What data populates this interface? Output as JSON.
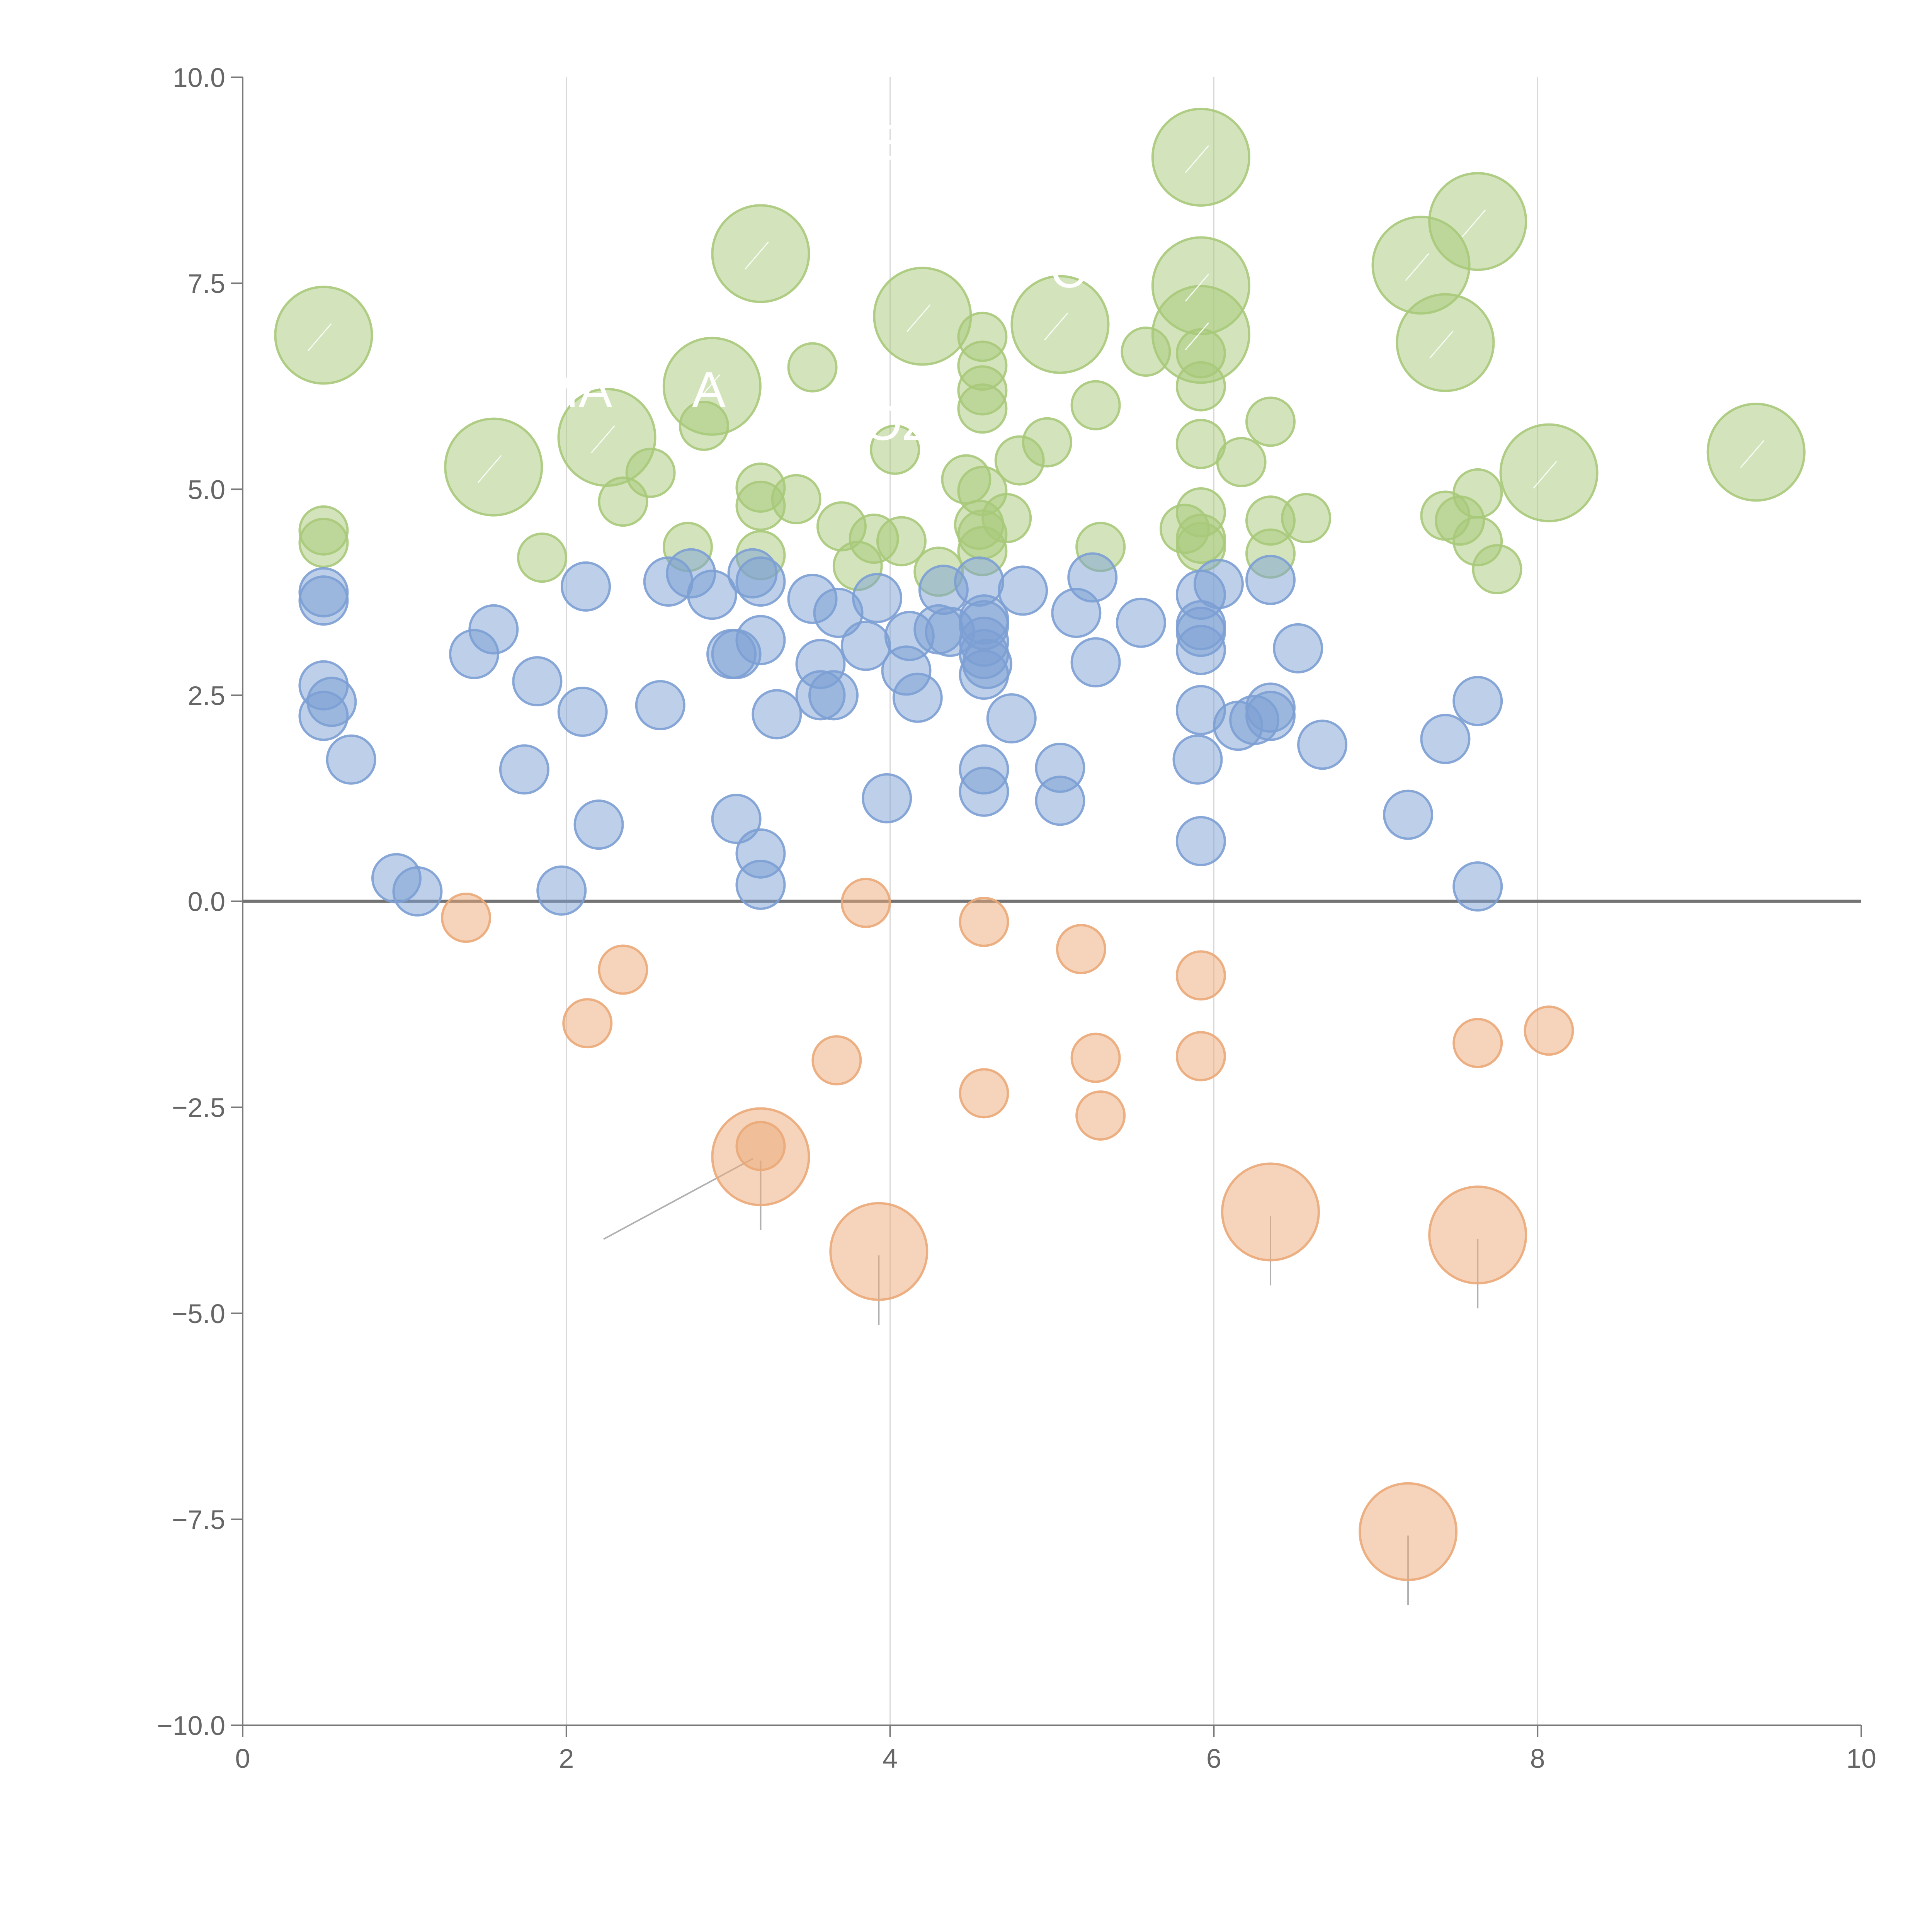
{
  "chart_data": {
    "type": "scatter",
    "title": "",
    "xlabel": "",
    "ylabel": "",
    "xlim": [
      0,
      10
    ],
    "ylim": [
      -10,
      10
    ],
    "xticks": [
      "0",
      "2",
      "4",
      "6",
      "8",
      "10"
    ],
    "yticks": [
      "10.0",
      "7.5",
      "5.0",
      "2.5",
      "0.0",
      "−2.5",
      "−5.0",
      "−7.5",
      "−10.0"
    ],
    "xtick_values": [
      0,
      2,
      4,
      6,
      8,
      10
    ],
    "ytick_values": [
      10,
      7.5,
      5,
      2.5,
      0,
      -2.5,
      -5,
      -7.5,
      -10
    ],
    "grid": "vertical",
    "zero_line": true,
    "colors": {
      "green": "#a8c97a",
      "blue": "#7c9fd4",
      "orange": "#eba978"
    },
    "series": [
      {
        "name": "green",
        "color": "#a8c97a",
        "points": [
          [
            0.5,
            6.87,
            "l"
          ],
          [
            3.2,
            7.86,
            "l"
          ],
          [
            4.2,
            7.1,
            "l"
          ],
          [
            5.05,
            7.0,
            "l"
          ],
          [
            5.92,
            9.03,
            "l"
          ],
          [
            5.92,
            7.47,
            "l"
          ],
          [
            5.92,
            6.88,
            "l"
          ],
          [
            7.28,
            7.72,
            "l"
          ],
          [
            7.63,
            8.25,
            "l"
          ],
          [
            7.43,
            6.78,
            "l"
          ],
          [
            9.35,
            5.45,
            "l"
          ],
          [
            8.07,
            5.2,
            "l"
          ],
          [
            2.9,
            6.25,
            "l"
          ],
          [
            2.25,
            5.63,
            "l"
          ],
          [
            1.55,
            5.27,
            "l"
          ],
          [
            0.5,
            4.5,
            "s"
          ],
          [
            0.5,
            4.35,
            "s"
          ],
          [
            1.85,
            4.17,
            "s"
          ],
          [
            2.35,
            4.85,
            "s"
          ],
          [
            2.52,
            5.2,
            "s"
          ],
          [
            2.85,
            5.77,
            "s"
          ],
          [
            2.75,
            4.3,
            "s"
          ],
          [
            3.2,
            5.02,
            "s"
          ],
          [
            3.2,
            4.8,
            "s"
          ],
          [
            3.2,
            4.2,
            "s"
          ],
          [
            3.42,
            4.88,
            "s"
          ],
          [
            3.52,
            6.48,
            "s"
          ],
          [
            3.7,
            4.55,
            "s"
          ],
          [
            3.8,
            4.07,
            "s"
          ],
          [
            3.9,
            4.4,
            "s"
          ],
          [
            4.07,
            4.37,
            "s"
          ],
          [
            4.03,
            5.48,
            "s"
          ],
          [
            4.3,
            4.0,
            "s"
          ],
          [
            4.47,
            5.12,
            "s"
          ],
          [
            4.57,
            6.85,
            "s"
          ],
          [
            4.57,
            6.5,
            "s"
          ],
          [
            4.57,
            6.2,
            "s"
          ],
          [
            4.57,
            5.98,
            "s"
          ],
          [
            4.57,
            4.98,
            "s"
          ],
          [
            4.55,
            4.57,
            "s"
          ],
          [
            4.57,
            4.45,
            "s"
          ],
          [
            4.57,
            4.25,
            "s"
          ],
          [
            4.72,
            4.65,
            "s"
          ],
          [
            4.8,
            5.35,
            "s"
          ],
          [
            4.97,
            5.57,
            "s"
          ],
          [
            5.27,
            6.02,
            "s"
          ],
          [
            5.3,
            4.3,
            "s"
          ],
          [
            5.58,
            6.67,
            "s"
          ],
          [
            5.82,
            4.52,
            "s"
          ],
          [
            5.92,
            6.65,
            "s"
          ],
          [
            5.92,
            6.25,
            "s"
          ],
          [
            5.92,
            5.55,
            "s"
          ],
          [
            5.92,
            4.72,
            "s"
          ],
          [
            5.92,
            4.4,
            "s"
          ],
          [
            5.92,
            4.3,
            "s"
          ],
          [
            6.17,
            5.33,
            "s"
          ],
          [
            6.35,
            5.82,
            "s"
          ],
          [
            6.35,
            4.62,
            "s"
          ],
          [
            6.35,
            4.22,
            "s"
          ],
          [
            6.57,
            4.65,
            "s"
          ],
          [
            7.43,
            4.68,
            "s"
          ],
          [
            7.52,
            4.62,
            "s"
          ],
          [
            7.63,
            4.95,
            "s"
          ],
          [
            7.63,
            4.37,
            "s"
          ],
          [
            7.75,
            4.03,
            "s"
          ]
        ]
      },
      {
        "name": "blue",
        "color": "#7c9fd4",
        "points": [
          [
            0.5,
            3.75,
            "s"
          ],
          [
            0.5,
            3.65,
            "s"
          ],
          [
            0.5,
            2.62,
            "s"
          ],
          [
            0.55,
            2.42,
            "s"
          ],
          [
            0.5,
            2.25,
            "s"
          ],
          [
            0.67,
            1.72,
            "s"
          ],
          [
            0.95,
            0.28,
            "s"
          ],
          [
            1.08,
            0.12,
            "s"
          ],
          [
            1.43,
            3.0,
            "s"
          ],
          [
            1.55,
            3.3,
            "s"
          ],
          [
            1.74,
            1.6,
            "s"
          ],
          [
            1.82,
            2.67,
            "s"
          ],
          [
            1.97,
            0.13,
            "s"
          ],
          [
            2.1,
            2.3,
            "s"
          ],
          [
            2.2,
            0.93,
            "s"
          ],
          [
            2.12,
            3.82,
            "s"
          ],
          [
            2.58,
            2.38,
            "s"
          ],
          [
            2.63,
            3.88,
            "s"
          ],
          [
            2.77,
            3.98,
            "s"
          ],
          [
            2.9,
            3.72,
            "s"
          ],
          [
            3.02,
            3.0,
            "s"
          ],
          [
            3.05,
            3.0,
            "s"
          ],
          [
            3.05,
            1.0,
            "s"
          ],
          [
            3.15,
            3.98,
            "s"
          ],
          [
            3.2,
            3.88,
            "s"
          ],
          [
            3.2,
            3.17,
            "s"
          ],
          [
            3.2,
            0.58,
            "s"
          ],
          [
            3.2,
            0.2,
            "s"
          ],
          [
            3.3,
            2.27,
            "s"
          ],
          [
            3.52,
            3.67,
            "s"
          ],
          [
            3.57,
            2.88,
            "s"
          ],
          [
            3.57,
            2.5,
            "s"
          ],
          [
            3.65,
            2.5,
            "s"
          ],
          [
            3.68,
            3.5,
            "s"
          ],
          [
            3.85,
            3.1,
            "s"
          ],
          [
            3.92,
            3.68,
            "s"
          ],
          [
            3.98,
            1.25,
            "s"
          ],
          [
            4.1,
            2.8,
            "s"
          ],
          [
            4.12,
            3.22,
            "s"
          ],
          [
            4.17,
            2.47,
            "s"
          ],
          [
            4.3,
            3.3,
            "s"
          ],
          [
            4.33,
            3.78,
            "s"
          ],
          [
            4.37,
            3.27,
            "s"
          ],
          [
            4.55,
            3.88,
            "s"
          ],
          [
            4.58,
            3.42,
            "s"
          ],
          [
            4.58,
            3.35,
            "s"
          ],
          [
            4.58,
            3.15,
            "s"
          ],
          [
            4.58,
            3.0,
            "s"
          ],
          [
            4.6,
            2.88,
            "s"
          ],
          [
            4.58,
            2.75,
            "s"
          ],
          [
            4.58,
            1.6,
            "s"
          ],
          [
            4.58,
            1.33,
            "s"
          ],
          [
            4.75,
            2.22,
            "s"
          ],
          [
            4.82,
            3.77,
            "s"
          ],
          [
            5.05,
            1.62,
            "s"
          ],
          [
            5.05,
            1.22,
            "s"
          ],
          [
            5.15,
            3.5,
            "s"
          ],
          [
            5.25,
            3.93,
            "s"
          ],
          [
            5.27,
            2.9,
            "s"
          ],
          [
            5.55,
            3.38,
            "s"
          ],
          [
            5.92,
            3.72,
            "s"
          ],
          [
            5.92,
            3.35,
            "s"
          ],
          [
            5.92,
            3.27,
            "s"
          ],
          [
            5.92,
            3.05,
            "s"
          ],
          [
            5.92,
            2.32,
            "s"
          ],
          [
            5.9,
            1.72,
            "s"
          ],
          [
            5.92,
            0.73,
            "s"
          ],
          [
            6.03,
            3.85,
            "s"
          ],
          [
            6.15,
            2.13,
            "s"
          ],
          [
            6.25,
            2.2,
            "s"
          ],
          [
            6.35,
            3.9,
            "s"
          ],
          [
            6.35,
            2.35,
            "s"
          ],
          [
            6.35,
            2.25,
            "s"
          ],
          [
            6.52,
            3.07,
            "s"
          ],
          [
            6.67,
            1.9,
            "s"
          ],
          [
            7.2,
            1.05,
            "s"
          ],
          [
            7.43,
            1.97,
            "s"
          ],
          [
            7.63,
            2.43,
            "s"
          ],
          [
            7.63,
            0.18,
            "s"
          ]
        ]
      },
      {
        "name": "orange",
        "color": "#eba978",
        "points": [
          [
            1.38,
            -0.2,
            "s"
          ],
          [
            2.35,
            -0.83,
            "s"
          ],
          [
            2.13,
            -1.48,
            "s"
          ],
          [
            3.2,
            -2.97,
            "s"
          ],
          [
            3.2,
            -3.1,
            "l"
          ],
          [
            3.67,
            -1.93,
            "s"
          ],
          [
            3.85,
            -0.02,
            "s"
          ],
          [
            3.93,
            -4.25,
            "l"
          ],
          [
            4.58,
            -0.25,
            "s"
          ],
          [
            4.58,
            -2.33,
            "s"
          ],
          [
            5.18,
            -0.58,
            "s"
          ],
          [
            5.27,
            -1.9,
            "s"
          ],
          [
            5.3,
            -2.6,
            "s"
          ],
          [
            5.92,
            -0.9,
            "s"
          ],
          [
            5.92,
            -1.88,
            "s"
          ],
          [
            6.35,
            -3.77,
            "l"
          ],
          [
            7.63,
            -1.72,
            "s"
          ],
          [
            7.63,
            -4.05,
            "l"
          ],
          [
            8.07,
            -1.57,
            "s"
          ],
          [
            7.2,
            -7.65,
            "l"
          ]
        ]
      }
    ],
    "annotations": [
      {
        "text": "MA",
        "x": 2.05,
        "y": 6.0
      },
      {
        "text": "A",
        "x": 2.88,
        "y": 6.0
      },
      {
        "text": "OZ",
        "x": 4.05,
        "y": 5.6
      },
      {
        "text": "C",
        "x": 5.1,
        "y": 7.45
      },
      {
        "text": "E",
        "x": 3.95,
        "y": 9.0
      }
    ]
  }
}
